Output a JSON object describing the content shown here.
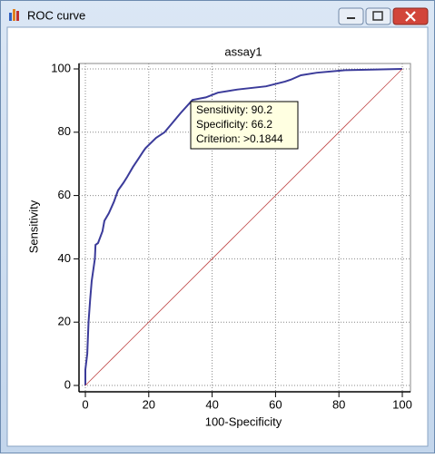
{
  "window_title": "ROC curve",
  "chart_data": {
    "type": "line",
    "title": "assay1",
    "x_label": "100-Specificity",
    "y_label": "Sensitivity",
    "xlim": [
      0,
      100
    ],
    "ylim": [
      0,
      100
    ],
    "xticks": [
      0,
      20,
      40,
      60,
      80,
      100
    ],
    "yticks": [
      0,
      20,
      40,
      60,
      80,
      100
    ],
    "grid": true,
    "series": [
      {
        "color": "#3b3b9a",
        "x": [
          0,
          0,
          0.6,
          1,
          1.5,
          2,
          3,
          3.2,
          4,
          5.4,
          6,
          7.4,
          9,
          10.3,
          12,
          13.2,
          15,
          17,
          18.3,
          19,
          22.3,
          25,
          27.5,
          30,
          33.8,
          38,
          41.8,
          48,
          57,
          63,
          64.8,
          68,
          73,
          82,
          100
        ],
        "values": [
          0,
          5,
          10,
          20,
          27,
          33,
          40,
          44.4,
          45,
          48.7,
          52,
          54.4,
          58,
          61.6,
          64,
          65.9,
          69,
          72,
          74,
          75,
          78.2,
          80,
          83,
          86,
          90.2,
          91,
          92.5,
          93.5,
          94.5,
          96,
          96.6,
          98,
          98.8,
          99.6,
          100
        ]
      },
      {
        "color": "#c04848",
        "x": [
          0,
          100
        ],
        "values": [
          0,
          100
        ]
      }
    ],
    "annotations": [
      "Sensitivity: 90.2",
      "Specificity: 66.2",
      "Criterion: >0.1844"
    ]
  }
}
